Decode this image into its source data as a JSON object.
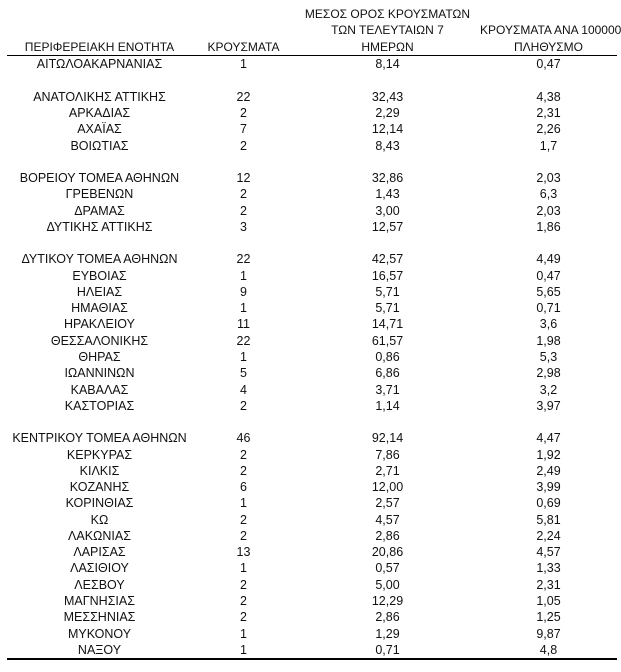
{
  "page": {
    "background_color": "#ffffff",
    "text_color": "#111111",
    "rule_color": "#000000"
  },
  "table": {
    "headers": [
      "ΠΕΡΙΦΕΡΕΙΑΚΗ ΕΝΟΤΗΤΑ",
      "ΚΡΟΥΣΜΑΤΑ",
      "ΜΕΣΟΣ ΟΡΟΣ ΚΡΟΥΣΜΑΤΩΝ\nΤΩΝ ΤΕΛΕΥΤΑΙΩΝ 7\nΗΜΕΡΩΝ",
      "ΚΡΟΥΣΜΑΤΑ ΑΝΑ 100000\nΠΛΗΘΥΣΜΟ"
    ],
    "rows": [
      [
        "ΑΙΤΩΛΟΑΚΑΡΝΑΝΙΑΣ",
        "1",
        "8,14",
        "0,47"
      ],
      [
        "",
        "",
        "",
        ""
      ],
      [
        "ΑΝΑΤΟΛΙΚΗΣ ΑΤΤΙΚΗΣ",
        "22",
        "32,43",
        "4,38"
      ],
      [
        "ΑΡΚΑΔΙΑΣ",
        "2",
        "2,29",
        "2,31"
      ],
      [
        "ΑΧΑΪΑΣ",
        "7",
        "12,14",
        "2,26"
      ],
      [
        "ΒΟΙΩΤΙΑΣ",
        "2",
        "8,43",
        "1,7"
      ],
      [
        "",
        "",
        "",
        ""
      ],
      [
        "ΒΟΡΕΙΟΥ ΤΟΜΕΑ ΑΘΗΝΩΝ",
        "12",
        "32,86",
        "2,03"
      ],
      [
        "ΓΡΕΒΕΝΩΝ",
        "2",
        "1,43",
        "6,3"
      ],
      [
        "ΔΡΑΜΑΣ",
        "2",
        "3,00",
        "2,03"
      ],
      [
        "ΔΥΤΙΚΗΣ ΑΤΤΙΚΗΣ",
        "3",
        "12,57",
        "1,86"
      ],
      [
        "",
        "",
        "",
        ""
      ],
      [
        "ΔΥΤΙΚΟΥ ΤΟΜΕΑ ΑΘΗΝΩΝ",
        "22",
        "42,57",
        "4,49"
      ],
      [
        "ΕΥΒΟΙΑΣ",
        "1",
        "16,57",
        "0,47"
      ],
      [
        "ΗΛΕΙΑΣ",
        "9",
        "5,71",
        "5,65"
      ],
      [
        "ΗΜΑΘΙΑΣ",
        "1",
        "5,71",
        "0,71"
      ],
      [
        "ΗΡΑΚΛΕΙΟΥ",
        "11",
        "14,71",
        "3,6"
      ],
      [
        "ΘΕΣΣΑΛΟΝΙΚΗΣ",
        "22",
        "61,57",
        "1,98"
      ],
      [
        "ΘΗΡΑΣ",
        "1",
        "0,86",
        "5,3"
      ],
      [
        "ΙΩΑΝΝΙΝΩΝ",
        "5",
        "6,86",
        "2,98"
      ],
      [
        "ΚΑΒΑΛΑΣ",
        "4",
        "3,71",
        "3,2"
      ],
      [
        "ΚΑΣΤΟΡΙΑΣ",
        "2",
        "1,14",
        "3,97"
      ],
      [
        "",
        "",
        "",
        ""
      ],
      [
        "ΚΕΝΤΡΙΚΟΥ ΤΟΜΕΑ ΑΘΗΝΩΝ",
        "46",
        "92,14",
        "4,47"
      ],
      [
        "ΚΕΡΚΥΡΑΣ",
        "2",
        "7,86",
        "1,92"
      ],
      [
        "ΚΙΛΚΙΣ",
        "2",
        "2,71",
        "2,49"
      ],
      [
        "ΚΟΖΑΝΗΣ",
        "6",
        "12,00",
        "3,99"
      ],
      [
        "ΚΟΡΙΝΘΙΑΣ",
        "1",
        "2,57",
        "0,69"
      ],
      [
        "ΚΩ",
        "2",
        "4,57",
        "5,81"
      ],
      [
        "ΛΑΚΩΝΙΑΣ",
        "2",
        "2,86",
        "2,24"
      ],
      [
        "ΛΑΡΙΣΑΣ",
        "13",
        "20,86",
        "4,57"
      ],
      [
        "ΛΑΣΙΘΙΟΥ",
        "1",
        "0,57",
        "1,33"
      ],
      [
        "ΛΕΣΒΟΥ",
        "2",
        "5,00",
        "2,31"
      ],
      [
        "ΜΑΓΝΗΣΙΑΣ",
        "2",
        "12,29",
        "1,05"
      ],
      [
        "ΜΕΣΣΗΝΙΑΣ",
        "2",
        "2,86",
        "1,25"
      ],
      [
        "ΜΥΚΟΝΟΥ",
        "1",
        "1,29",
        "9,87"
      ],
      [
        "ΝΑΞΟΥ",
        "1",
        "0,71",
        "4,8"
      ]
    ]
  }
}
